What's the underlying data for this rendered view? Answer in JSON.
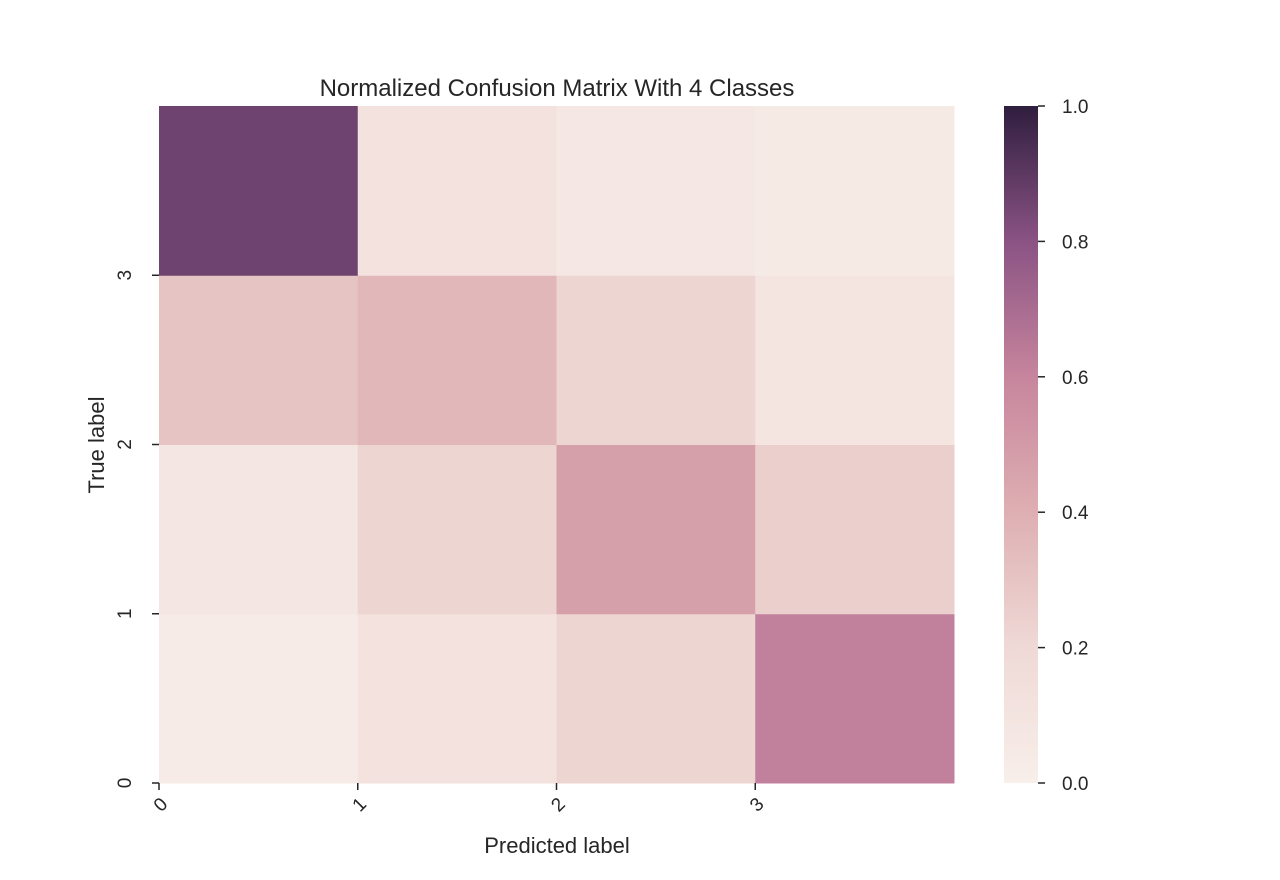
{
  "chart_data": {
    "type": "heatmap",
    "title": "Normalized Confusion Matrix With 4 Classes",
    "xlabel": "Predicted label",
    "ylabel": "True label",
    "x_categories": [
      "0",
      "1",
      "2",
      "3"
    ],
    "y_categories": [
      "0",
      "1",
      "2",
      "3"
    ],
    "y_order": "bottom-to-top",
    "values": [
      [
        0.04,
        0.12,
        0.22,
        0.62
      ],
      [
        0.08,
        0.22,
        0.47,
        0.25
      ],
      [
        0.3,
        0.36,
        0.22,
        0.09
      ],
      [
        0.86,
        0.12,
        0.06,
        0.05
      ]
    ],
    "value_range": [
      0.0,
      1.0
    ],
    "colorbar": {
      "ticks": [
        "0.0",
        "0.2",
        "0.4",
        "0.6",
        "0.8",
        "1.0"
      ],
      "colormap": [
        "#f8efea",
        "#efd9d6",
        "#deafb2",
        "#c7859d",
        "#8a5384",
        "#2f1e3e"
      ]
    },
    "grid": false
  }
}
